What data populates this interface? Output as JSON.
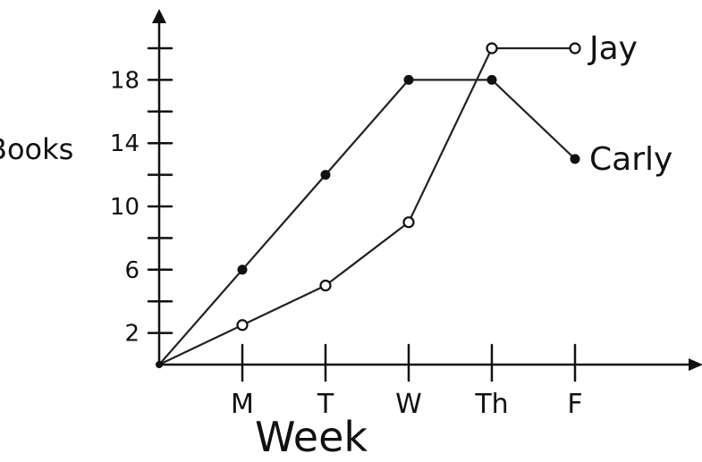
{
  "chart_data": {
    "type": "line",
    "xlabel": "Week",
    "ylabel": "Books",
    "categories": [
      "M",
      "T",
      "W",
      "Th",
      "F"
    ],
    "ylim": [
      0,
      22
    ],
    "yticks": [
      2,
      6,
      10,
      14,
      18
    ],
    "ytick_labels": [
      "2",
      "6",
      "10",
      "14",
      "18"
    ],
    "grid": false,
    "origin_point": true,
    "series": [
      {
        "name": "Jay",
        "values": [
          2.5,
          5,
          9,
          20,
          20
        ],
        "marker": "open"
      },
      {
        "name": "Carly",
        "values": [
          6,
          12,
          18,
          18,
          13
        ],
        "marker": "filled"
      }
    ]
  }
}
